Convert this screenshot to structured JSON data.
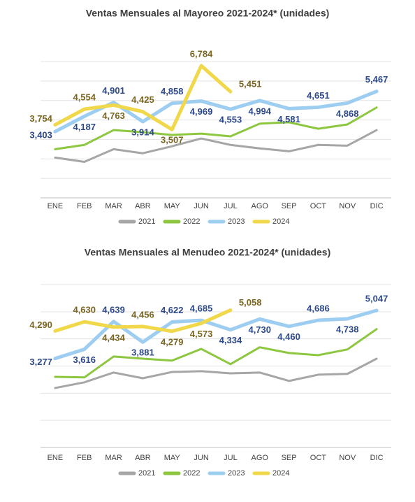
{
  "chart_data": [
    {
      "type": "line",
      "title": "Ventas Mensuales al Mayoreo 2021-2024* (unidades)",
      "categories": [
        "ENE",
        "FEB",
        "MAR",
        "ABR",
        "MAY",
        "JUN",
        "JUL",
        "AGO",
        "SEP",
        "OCT",
        "NOV",
        "DIC"
      ],
      "ylim": [
        0,
        7000
      ],
      "yticks": [
        0,
        1000,
        2000,
        3000,
        4000,
        5000,
        6000,
        7000
      ],
      "grid": true,
      "tick_labels": false,
      "legend": "bottom",
      "series": [
        {
          "name": "2021",
          "color": "#a6a6a6",
          "values": [
            2070,
            1850,
            2500,
            2290,
            2650,
            3050,
            2720,
            2540,
            2390,
            2720,
            2680,
            3480
          ]
        },
        {
          "name": "2022",
          "color": "#8dc63f",
          "values": [
            2500,
            2720,
            3480,
            3370,
            3230,
            3300,
            3160,
            3810,
            3880,
            3550,
            3770,
            4640
          ]
        },
        {
          "name": "2023",
          "color": "#9dcdf0",
          "label_color": "#2e4a8a",
          "values": [
            3403,
            4187,
            4901,
            3914,
            4858,
            4969,
            4553,
            4994,
            4581,
            4651,
            4868,
            5467
          ],
          "value_labels": [
            "3,403",
            "4,187",
            "4,901",
            "3,914",
            "4,858",
            "4,969",
            "4,553",
            "4,994",
            "4,581",
            "4,651",
            "4,868",
            "5,467"
          ]
        },
        {
          "name": "2024",
          "color": "#f0d84a",
          "label_color": "#7a6520",
          "values": [
            3754,
            4554,
            4763,
            4425,
            3507,
            6784,
            5451,
            null,
            null,
            null,
            null,
            null
          ],
          "value_labels": [
            "3,754",
            "4,554",
            "4,763",
            "4,425",
            "3,507",
            "6,784",
            "5,451",
            null,
            null,
            null,
            null,
            null
          ]
        }
      ]
    },
    {
      "type": "line",
      "title": "Ventas Mensuales al Menudeo 2021-2024* (unidades)",
      "categories": [
        "ENE",
        "FEB",
        "MAR",
        "ABR",
        "MAY",
        "JUN",
        "JUL",
        "AGO",
        "SEP",
        "OCT",
        "NOV",
        "DIC"
      ],
      "ylim": [
        0,
        6000
      ],
      "yticks": [
        0,
        1000,
        2000,
        3000,
        4000,
        5000,
        6000
      ],
      "grid": true,
      "tick_labels": false,
      "legend": "bottom",
      "series": [
        {
          "name": "2021",
          "color": "#a6a6a6",
          "values": [
            2190,
            2400,
            2760,
            2550,
            2780,
            2810,
            2730,
            2760,
            2450,
            2680,
            2710,
            3270
          ]
        },
        {
          "name": "2022",
          "color": "#8dc63f",
          "values": [
            2600,
            2580,
            3350,
            3270,
            3200,
            3630,
            3070,
            3690,
            3480,
            3400,
            3610,
            4360
          ]
        },
        {
          "name": "2023",
          "color": "#9dcdf0",
          "label_color": "#2e4a8a",
          "values": [
            3277,
            3616,
            4639,
            3881,
            4622,
            4685,
            4334,
            4730,
            4460,
            4686,
            4738,
            5047
          ],
          "value_labels": [
            "3,277",
            "3,616",
            "4,639",
            "3,881",
            "4,622",
            "4,685",
            "4,334",
            "4,730",
            "4,460",
            "4,686",
            "4,738",
            "5,047"
          ]
        },
        {
          "name": "2024",
          "color": "#f0d84a",
          "label_color": "#7a6520",
          "values": [
            4290,
            4630,
            4434,
            4456,
            4279,
            4573,
            5058,
            null,
            null,
            null,
            null,
            null
          ],
          "value_labels": [
            "4,290",
            "4,630",
            "4,434",
            "4,456",
            "4,279",
            "4,573",
            "5,058",
            null,
            null,
            null,
            null,
            null
          ]
        }
      ]
    }
  ]
}
